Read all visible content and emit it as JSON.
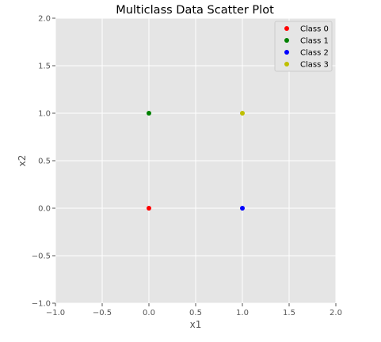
{
  "chart_data": {
    "type": "scatter",
    "title": "Multiclass Data Scatter Plot",
    "xlabel": "x1",
    "ylabel": "x2",
    "xlim": [
      -1.0,
      2.0
    ],
    "ylim": [
      -1.0,
      2.0
    ],
    "xticks": [
      -1.0,
      -0.5,
      0.0,
      0.5,
      1.0,
      1.5,
      2.0
    ],
    "yticks": [
      -1.0,
      -0.5,
      0.0,
      0.5,
      1.0,
      1.5,
      2.0
    ],
    "xtick_labels": [
      "−1.0",
      "−0.5",
      "0.0",
      "0.5",
      "1.0",
      "1.5",
      "2.0"
    ],
    "ytick_labels": [
      "−1.0",
      "−0.5",
      "0.0",
      "0.5",
      "1.0",
      "1.5",
      "2.0"
    ],
    "grid": true,
    "legend_position": "top-right",
    "series": [
      {
        "name": "Class 0",
        "color": "#ff0000",
        "points": [
          [
            0.0,
            0.0
          ]
        ]
      },
      {
        "name": "Class 1",
        "color": "#008000",
        "points": [
          [
            0.0,
            1.0
          ]
        ]
      },
      {
        "name": "Class 2",
        "color": "#0000ff",
        "points": [
          [
            1.0,
            0.0
          ]
        ]
      },
      {
        "name": "Class 3",
        "color": "#bfbf00",
        "points": [
          [
            1.0,
            1.0
          ]
        ]
      }
    ]
  }
}
